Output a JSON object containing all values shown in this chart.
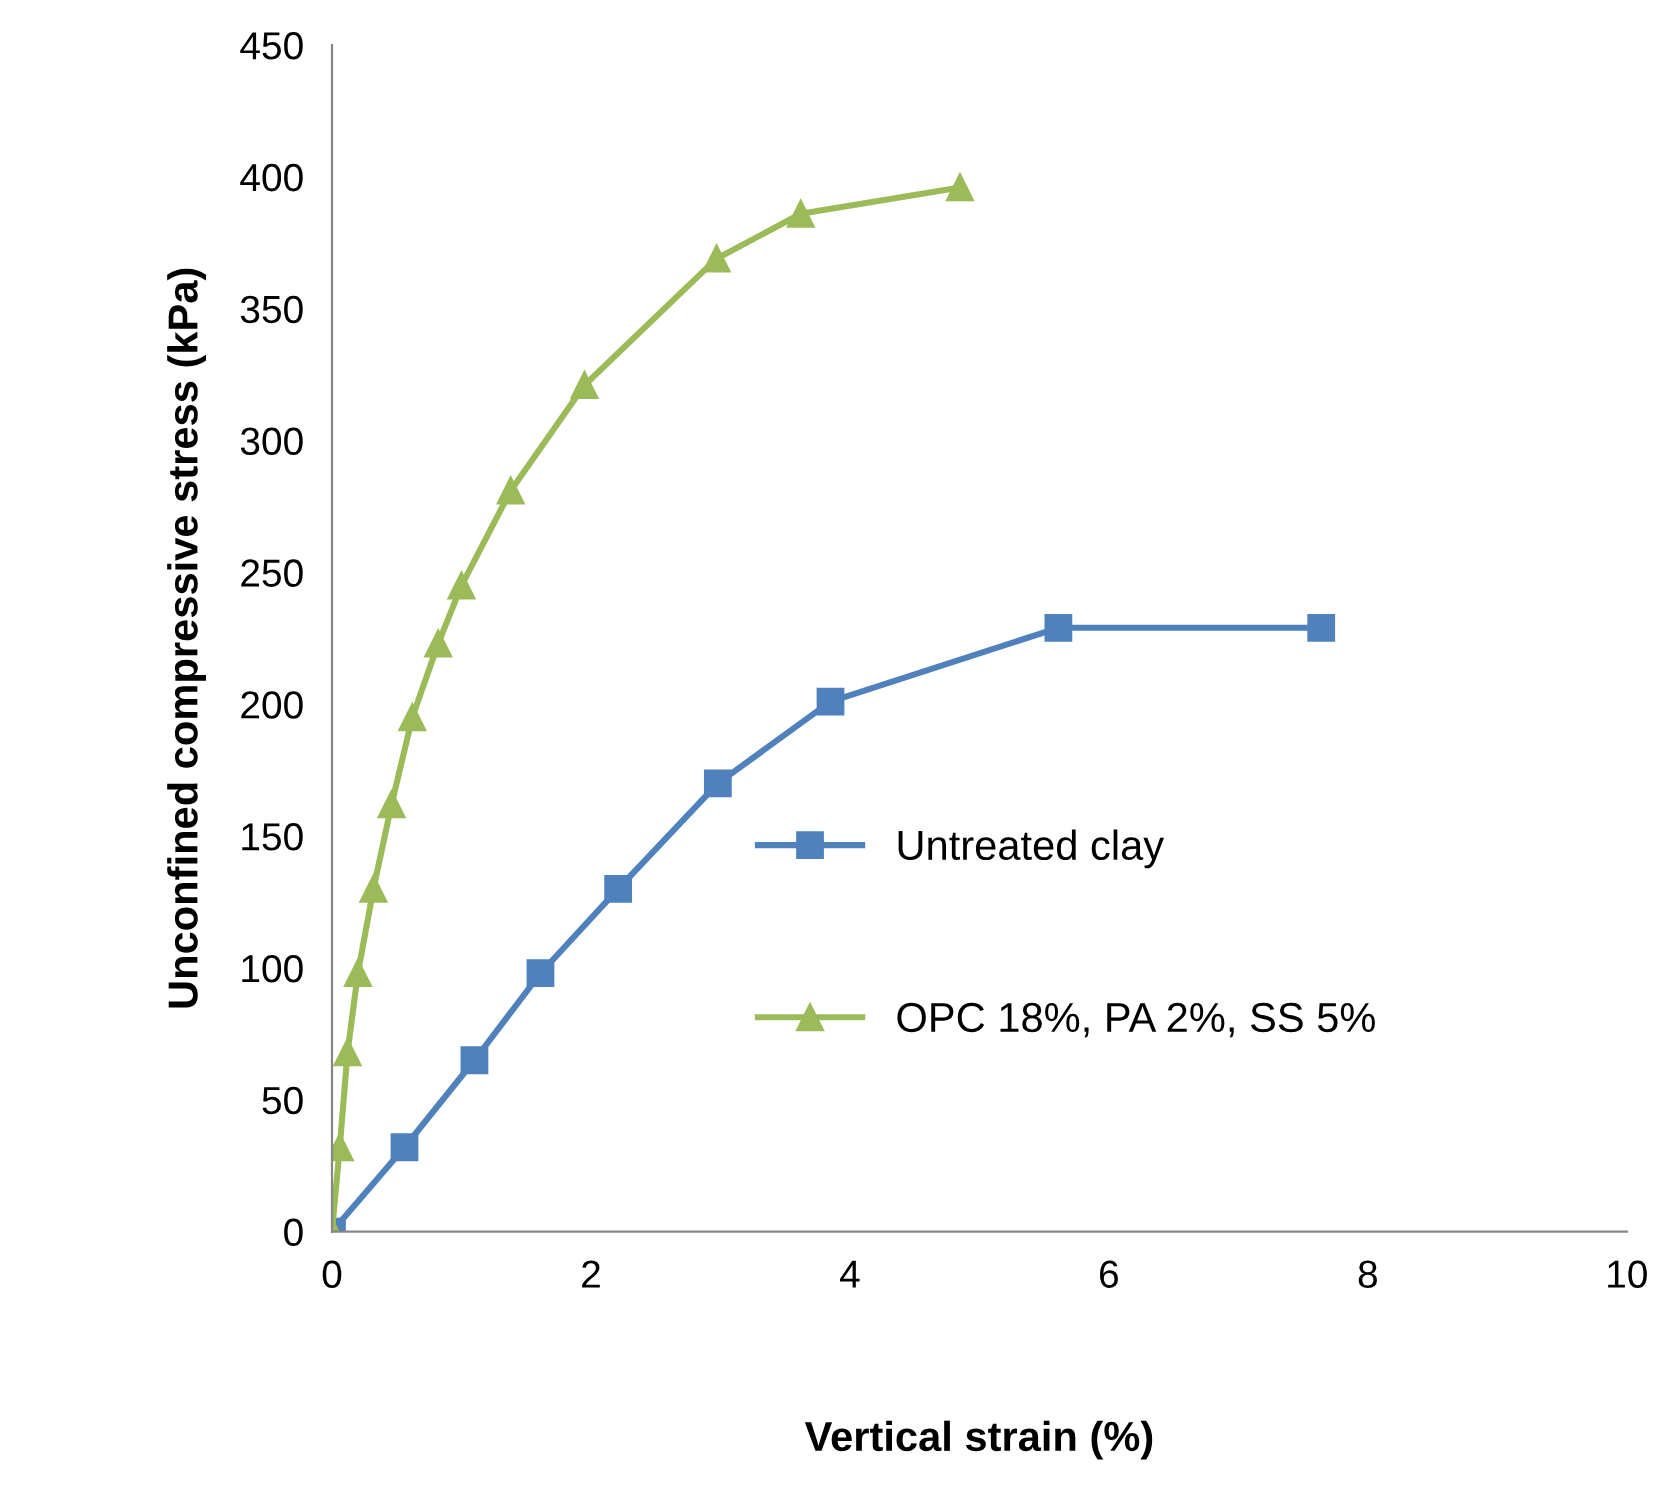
{
  "chart_data": {
    "type": "line",
    "xlabel": "Vertical strain (%)",
    "ylabel": "Unconfined compressive stress (kPa)",
    "xlim": [
      0,
      10
    ],
    "xticks": [
      0,
      2,
      4,
      6,
      8,
      10
    ],
    "ylim": [
      0,
      450
    ],
    "yticks": [
      0,
      50,
      100,
      150,
      200,
      250,
      300,
      350,
      400,
      450
    ],
    "grid": false,
    "legend": "right",
    "series": [
      {
        "name": "Untreated clay",
        "color": "#4f81bd",
        "marker": "square",
        "x": [
          0,
          0.56,
          1.1,
          1.61,
          2.21,
          2.98,
          3.85,
          5.61,
          7.64
        ],
        "values": [
          0,
          32,
          65,
          98,
          130,
          170,
          201,
          229,
          229
        ]
      },
      {
        "name": "OPC 18%, PA 2%, SS 5%",
        "color": "#9bbb59",
        "marker": "triangle",
        "x": [
          0,
          0.06,
          0.12,
          0.2,
          0.32,
          0.46,
          0.62,
          0.82,
          1.0,
          1.38,
          1.95,
          2.97,
          3.62,
          4.85
        ],
        "values": [
          0,
          32,
          68,
          98,
          130,
          162,
          195,
          223,
          245,
          281,
          321,
          369,
          386,
          396
        ]
      }
    ]
  }
}
